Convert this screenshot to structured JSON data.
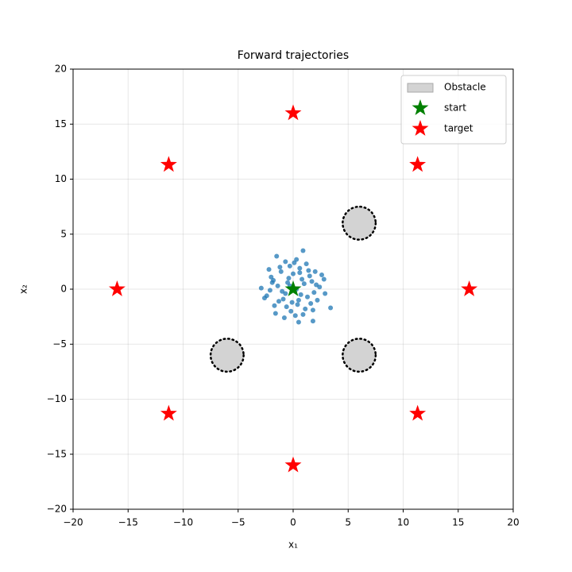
{
  "chart_data": {
    "type": "scatter",
    "title": "Forward trajectories",
    "x_label": "x₁",
    "y_label": "x₂",
    "xlim": [
      -20,
      20
    ],
    "ylim": [
      -20,
      20
    ],
    "xticks": [
      {
        "value": -20,
        "label": "−20"
      },
      {
        "value": -15,
        "label": "−15"
      },
      {
        "value": -10,
        "label": "−10"
      },
      {
        "value": -5,
        "label": "−5"
      },
      0,
      5,
      10,
      15,
      20
    ],
    "yticks": [
      {
        "value": -20,
        "label": "−20"
      },
      {
        "value": -15,
        "label": "−15"
      },
      {
        "value": -10,
        "label": "−10"
      },
      {
        "value": -5,
        "label": "−5"
      },
      0,
      5,
      10,
      15,
      20
    ],
    "grid": true,
    "legend": "upper right",
    "series": [
      {
        "name": "Obstacle",
        "marker": "circle",
        "color": "#d3d3d3",
        "x": [
          6,
          -6,
          6
        ],
        "y": [
          6,
          -6,
          -6
        ],
        "radius": [
          1.5,
          1.5,
          1.5
        ]
      },
      {
        "name": "start",
        "marker": "star",
        "color": "green",
        "x": [
          0
        ],
        "y": [
          0
        ]
      },
      {
        "name": "target",
        "marker": "star",
        "color": "red",
        "x": [
          0,
          11.31,
          16,
          11.31,
          0,
          -11.31,
          -16,
          -11.31
        ],
        "y": [
          16,
          11.31,
          0,
          -11.31,
          -16,
          -11.31,
          0,
          11.31
        ]
      }
    ],
    "samples": {
      "color": "#1f77b4",
      "x": [
        0.9,
        -1.5,
        3.4,
        -2.9,
        1.8,
        0.5,
        -1.6,
        2.9,
        -2.2,
        2.6,
        -0.7,
        0.3,
        1.2,
        -1.1,
        0.6,
        -0.3,
        1.5,
        -1.8,
        2.1,
        -2.4,
        0.0,
        0.8,
        -0.5,
        1.9,
        -1.3,
        0.4,
        -0.9,
        1.1,
        -0.2,
        2.4,
        -2.0,
        0.7,
        -0.6,
        1.6,
        -1.4,
        0.2,
        1.0,
        -1.0,
        2.2,
        -2.6,
        0.1,
        -0.4,
        1.4,
        -1.7,
        0.9,
        -0.8,
        1.7,
        -2.1,
        2.8,
        -0.1,
        0.6,
        1.3,
        -1.2,
        0.3,
        -0.3,
        2.0,
        -1.9,
        1.8,
        -0.7,
        0.5
      ],
      "y": [
        3.5,
        3.0,
        -1.7,
        0.1,
        -2.9,
        -3.0,
        -2.2,
        -0.4,
        1.8,
        1.3,
        2.5,
        2.7,
        2.3,
        1.6,
        1.9,
        2.1,
        1.2,
        0.8,
        0.4,
        -0.6,
        1.4,
        0.9,
        0.6,
        -0.3,
        -1.1,
        -1.4,
        -0.9,
        -1.8,
        -2.0,
        0.2,
        1.1,
        -0.5,
        -1.6,
        -1.3,
        0.3,
        -2.4,
        0.5,
        -0.2,
        -1.0,
        -0.8,
        2.4,
        1.0,
        1.7,
        -1.5,
        -2.3,
        -2.6,
        0.7,
        -0.1,
        0.9,
        -1.2,
        1.5,
        -0.7,
        2.0,
        0.0,
        0.3,
        1.6,
        0.6,
        -1.9,
        -0.4,
        -1.0
      ]
    }
  }
}
